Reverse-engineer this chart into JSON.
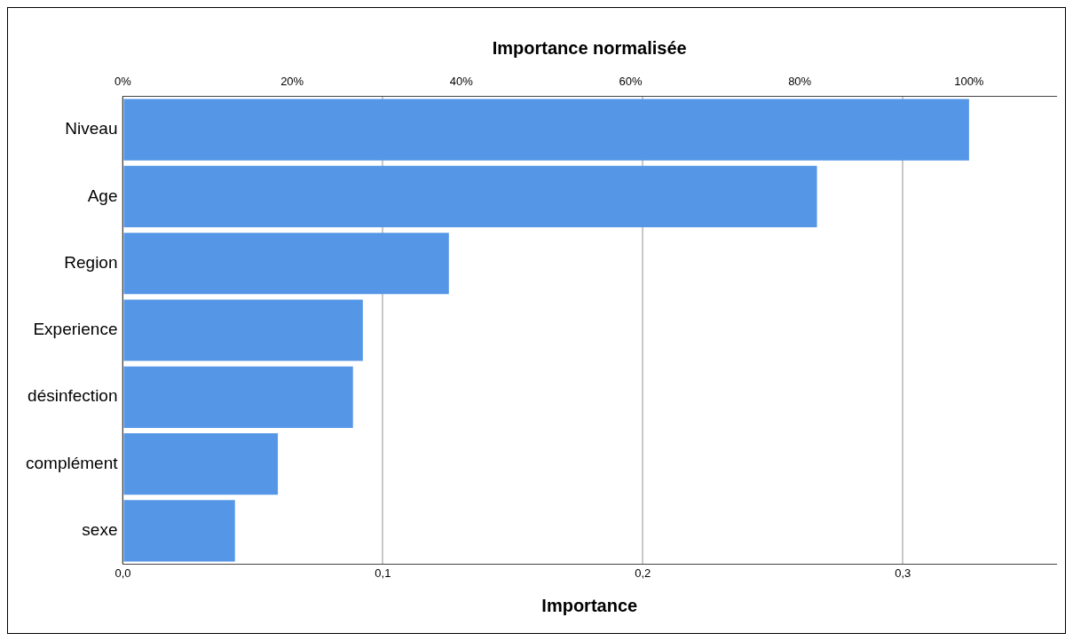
{
  "chart_data": {
    "type": "bar",
    "orientation": "horizontal",
    "xlabel": "Importance",
    "x2label": "Importance normalisée",
    "categories": [
      "Niveau",
      "Age",
      "Region",
      "Experience",
      "désinfection",
      "complément",
      "sexe"
    ],
    "values": [
      0.3255,
      0.267,
      0.1254,
      0.0923,
      0.0885,
      0.0596,
      0.0431
    ],
    "color": "#5596e6",
    "xlim": [
      0,
      0.359
    ],
    "xticks": [
      {
        "value": 0,
        "label": "0,0"
      },
      {
        "value": 0.1,
        "label": "0,1"
      },
      {
        "value": 0.2,
        "label": "0,2"
      },
      {
        "value": 0.3,
        "label": "0,3"
      }
    ],
    "x2lim": [
      0,
      110.3
    ],
    "x2ticks": [
      {
        "value": 0,
        "label": "0%"
      },
      {
        "value": 20,
        "label": "20%"
      },
      {
        "value": 40,
        "label": "40%"
      },
      {
        "value": 60,
        "label": "60%"
      },
      {
        "value": 80,
        "label": "80%"
      },
      {
        "value": 100,
        "label": "100%"
      }
    ],
    "grid": "x",
    "legend": false
  }
}
